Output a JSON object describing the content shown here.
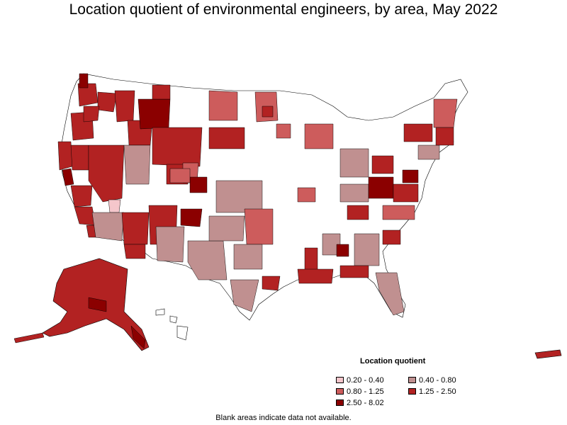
{
  "title": "Location quotient of environmental engineers, by area, May 2022",
  "legend": {
    "title": "Location quotient",
    "items": [
      {
        "label": "0.20 - 0.40",
        "color": "#f5c6cb"
      },
      {
        "label": "0.40 - 0.80",
        "color": "#c09090"
      },
      {
        "label": "0.80 - 1.25",
        "color": "#cd5c5c"
      },
      {
        "label": "1.25 - 2.50",
        "color": "#b22222"
      },
      {
        "label": "2.50 - 8.02",
        "color": "#8b0000"
      }
    ]
  },
  "footnote": "Blank areas indicate data not available.",
  "colors": {
    "blank": "#ffffff",
    "c1": "#f5c6cb",
    "c2": "#c09090",
    "c3": "#cd5c5c",
    "c4": "#b22222",
    "c5": "#8b0000"
  }
}
